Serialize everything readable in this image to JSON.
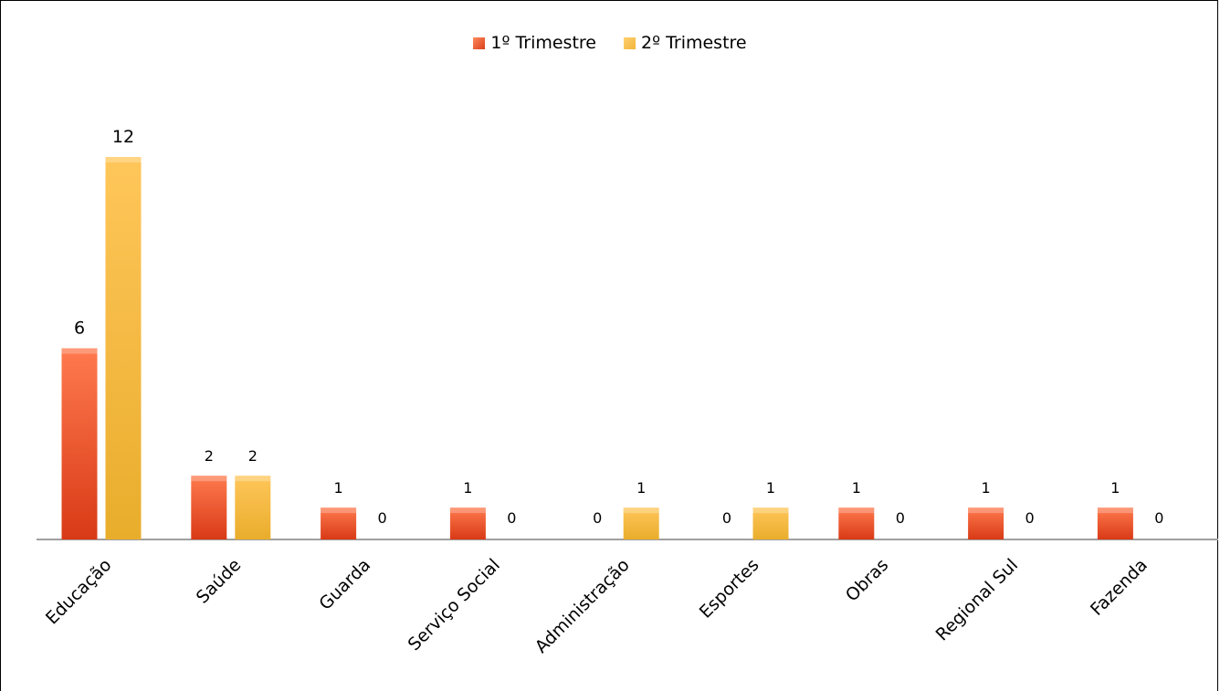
{
  "chart_data": {
    "type": "bar",
    "categories": [
      "Educação",
      "Saúde",
      "Guarda",
      "Serviço Social",
      "Administração",
      "Esportes",
      "Obras",
      "Regional Sul",
      "Fazenda"
    ],
    "series": [
      {
        "name": "1º Trimestre",
        "values": [
          6,
          2,
          1,
          1,
          0,
          0,
          1,
          1,
          1
        ]
      },
      {
        "name": "2º Trimestre",
        "values": [
          12,
          2,
          0,
          0,
          1,
          1,
          0,
          0,
          0
        ]
      }
    ],
    "title": "",
    "xlabel": "",
    "ylabel": "",
    "ylim": [
      0,
      12
    ],
    "grid": false,
    "legend_position": "top",
    "colors": {
      "series1": "#e0491f",
      "series2": "#f7bd45",
      "axis": "#a0a0a0"
    }
  }
}
